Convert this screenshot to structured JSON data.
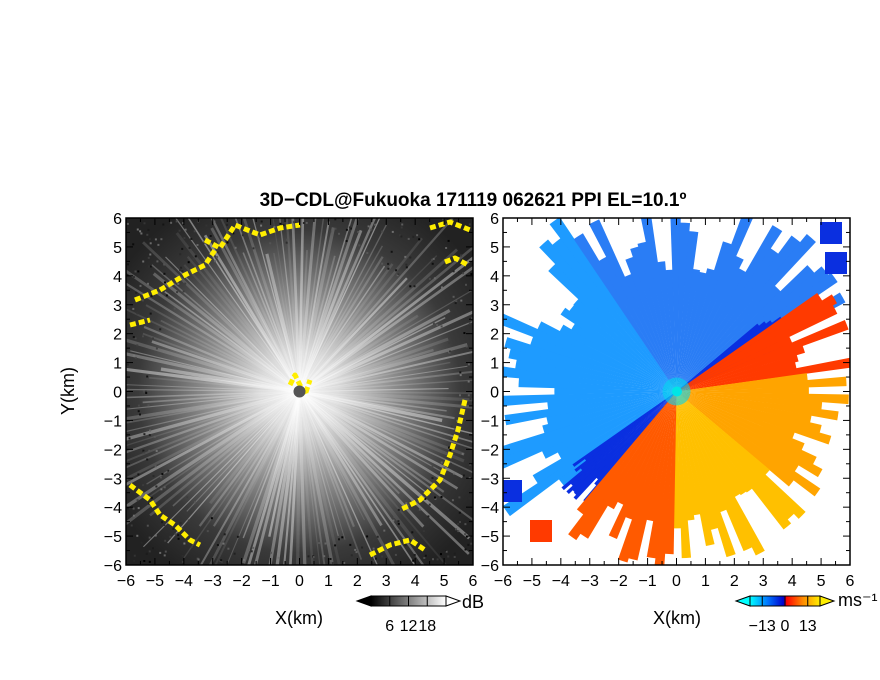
{
  "figure": {
    "title": "3D−CDL@Fukuoka 171119 062621 PPI EL=10.1º"
  },
  "chart_data": [
    {
      "type": "heatmap",
      "panel": "left",
      "quantity": "SNR",
      "xlabel": "X(km)",
      "ylabel": "Y(km)",
      "xlim": [
        -6,
        6
      ],
      "ylim": [
        -6,
        6
      ],
      "xticks": [
        -6,
        -5,
        -4,
        -3,
        -2,
        -1,
        0,
        1,
        2,
        3,
        4,
        5,
        6
      ],
      "yticks": [
        -6,
        -5,
        -4,
        -3,
        -2,
        -1,
        0,
        1,
        2,
        3,
        4,
        5,
        6
      ],
      "colorbar": {
        "unit": "dB",
        "ticks": [
          6,
          12,
          18
        ],
        "range": [
          0,
          24
        ],
        "colormap": [
          "#000000",
          "#ffffff"
        ]
      },
      "highlight_color": "#ffee00",
      "radar_center_color": "#555555"
    },
    {
      "type": "heatmap",
      "panel": "right",
      "quantity": "Doppler velocity",
      "xlabel": "X(km)",
      "xlim": [
        -6,
        6
      ],
      "ylim": [
        -6,
        6
      ],
      "xticks": [
        -6,
        -5,
        -4,
        -3,
        -2,
        -1,
        0,
        1,
        2,
        3,
        4,
        5,
        6
      ],
      "yticks": [
        -6,
        -5,
        -4,
        -3,
        -2,
        -1,
        0,
        1,
        2,
        3,
        4,
        5,
        6
      ],
      "colorbar": {
        "unit": "ms⁻¹",
        "ticks": [
          -13,
          0,
          13
        ],
        "range": [
          -20,
          20
        ],
        "colormap": [
          "#00ffff",
          "#0066ff",
          "#0000cc",
          "#ff0000",
          "#ff8800",
          "#ffee00"
        ]
      },
      "radar_center_color": "#00e5e5"
    }
  ]
}
